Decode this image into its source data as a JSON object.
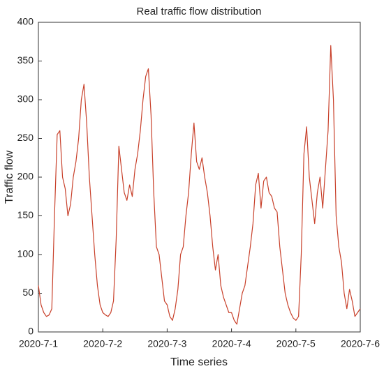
{
  "chart_data": {
    "type": "line",
    "title": "Real traffic flow distribution",
    "x_label": "Time series",
    "y_label": "Traffic flow",
    "categories": [
      "2020-7-1",
      null,
      null,
      null,
      null,
      null,
      null,
      null,
      null,
      null,
      null,
      null,
      null,
      null,
      null,
      null,
      null,
      null,
      null,
      null,
      null,
      null,
      null,
      null,
      "2020-7-2",
      null,
      null,
      null,
      null,
      null,
      null,
      null,
      null,
      null,
      null,
      null,
      null,
      null,
      null,
      null,
      null,
      null,
      null,
      null,
      null,
      null,
      null,
      null,
      "2020-7-3",
      null,
      null,
      null,
      null,
      null,
      null,
      null,
      null,
      null,
      null,
      null,
      null,
      null,
      null,
      null,
      null,
      null,
      null,
      null,
      null,
      null,
      null,
      null,
      "2020-7-4",
      null,
      null,
      null,
      null,
      null,
      null,
      null,
      null,
      null,
      null,
      null,
      null,
      null,
      null,
      null,
      null,
      null,
      null,
      null,
      null,
      null,
      null,
      null,
      "2020-7-5",
      null,
      null,
      null,
      null,
      null,
      null,
      null,
      null,
      null,
      null,
      null,
      null,
      null,
      null,
      null,
      null,
      null,
      null,
      null,
      null,
      null,
      null,
      null,
      "2020-7-6"
    ],
    "series": [
      {
        "name": "Traffic flow",
        "color": "#c8402a",
        "values": [
          60,
          35,
          25,
          20,
          22,
          30,
          150,
          255,
          260,
          200,
          185,
          150,
          165,
          200,
          220,
          250,
          300,
          320,
          270,
          200,
          150,
          100,
          60,
          35,
          25,
          22,
          20,
          25,
          40,
          120,
          240,
          210,
          180,
          170,
          190,
          175,
          210,
          230,
          260,
          300,
          330,
          340,
          280,
          180,
          110,
          100,
          70,
          40,
          35,
          20,
          15,
          30,
          55,
          100,
          110,
          150,
          180,
          230,
          270,
          220,
          210,
          225,
          200,
          180,
          150,
          110,
          80,
          100,
          60,
          45,
          35,
          25,
          25,
          15,
          10,
          30,
          50,
          60,
          85,
          110,
          140,
          190,
          205,
          160,
          195,
          200,
          180,
          175,
          160,
          155,
          110,
          80,
          50,
          35,
          25,
          18,
          15,
          20,
          100,
          230,
          265,
          200,
          170,
          140,
          180,
          200,
          160,
          210,
          260,
          370,
          300,
          150,
          110,
          90,
          50,
          30,
          55,
          40,
          20,
          25,
          30
        ]
      }
    ],
    "ylim": [
      0,
      400
    ],
    "yticks": [
      0,
      50,
      100,
      150,
      200,
      250,
      300,
      350,
      400
    ],
    "grid": false
  }
}
